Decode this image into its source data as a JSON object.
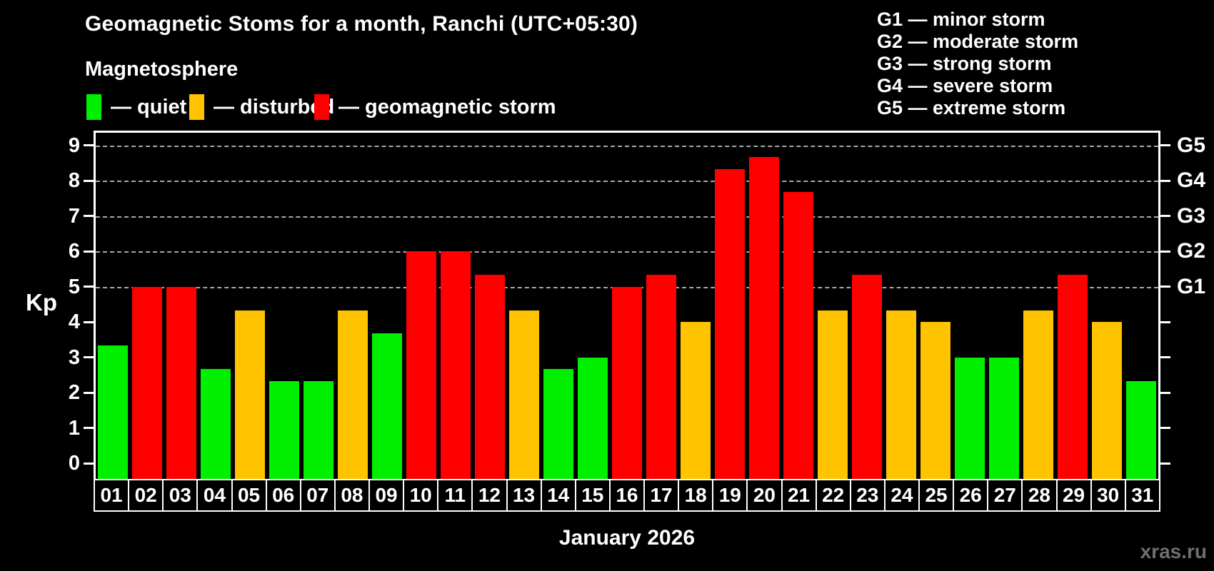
{
  "title": "Geomagnetic Stoms for a month, Ranchi (UTC+05:30)",
  "subtitle": "Magnetosphere",
  "legend": {
    "items": [
      {
        "key": "quiet",
        "label": "— quiet"
      },
      {
        "key": "disturbed",
        "label": "— disturbed"
      },
      {
        "key": "storm",
        "label": "— geomagnetic storm"
      }
    ]
  },
  "g_legend": {
    "lines": [
      "G1 — minor storm",
      "G2 — moderate storm",
      "G3 — strong storm",
      "G4 — severe storm",
      "G5 — extreme storm"
    ]
  },
  "axis": {
    "y_label": "Kp",
    "y_ticks": [
      0,
      1,
      2,
      3,
      4,
      5,
      6,
      7,
      8,
      9
    ],
    "g_levels": [
      {
        "label": "G1",
        "value": 5
      },
      {
        "label": "G2",
        "value": 6
      },
      {
        "label": "G3",
        "value": 7
      },
      {
        "label": "G4",
        "value": 8
      },
      {
        "label": "G5",
        "value": 9
      }
    ],
    "x_label": "January 2026"
  },
  "colors": {
    "quiet": "#00f000",
    "disturbed": "#ffc300",
    "storm": "#ff0000",
    "grid": "#a8a8a8",
    "axis": "#ffffff",
    "background": "#000000",
    "watermark": "#6f6f6f"
  },
  "watermark": "xras.ru",
  "chart_data": {
    "type": "bar",
    "title": "Geomagnetic Stoms for a month, Ranchi (UTC+05:30)",
    "xlabel": "January 2026",
    "ylabel": "Kp",
    "ylim": [
      0,
      9.4
    ],
    "grid": "dashed horizontal at Kp 5-9 (G1-G5)",
    "legend_position": "top",
    "categories": [
      "01",
      "02",
      "03",
      "04",
      "05",
      "06",
      "07",
      "08",
      "09",
      "10",
      "11",
      "12",
      "13",
      "14",
      "15",
      "16",
      "17",
      "18",
      "19",
      "20",
      "21",
      "22",
      "23",
      "24",
      "25",
      "26",
      "27",
      "28",
      "29",
      "30",
      "31"
    ],
    "values": [
      3.33,
      5.0,
      5.0,
      2.67,
      4.33,
      2.33,
      2.33,
      4.33,
      3.67,
      6.0,
      6.0,
      5.33,
      4.33,
      2.67,
      3.0,
      5.0,
      5.33,
      4.0,
      8.33,
      8.67,
      7.67,
      4.33,
      5.33,
      4.33,
      4.0,
      3.0,
      3.0,
      4.33,
      5.33,
      4.0,
      2.33
    ],
    "statuses": [
      "quiet",
      "storm",
      "storm",
      "quiet",
      "disturbed",
      "quiet",
      "quiet",
      "disturbed",
      "quiet",
      "storm",
      "storm",
      "storm",
      "disturbed",
      "quiet",
      "quiet",
      "storm",
      "storm",
      "disturbed",
      "storm",
      "storm",
      "storm",
      "disturbed",
      "storm",
      "disturbed",
      "disturbed",
      "quiet",
      "quiet",
      "disturbed",
      "storm",
      "disturbed",
      "quiet"
    ]
  }
}
